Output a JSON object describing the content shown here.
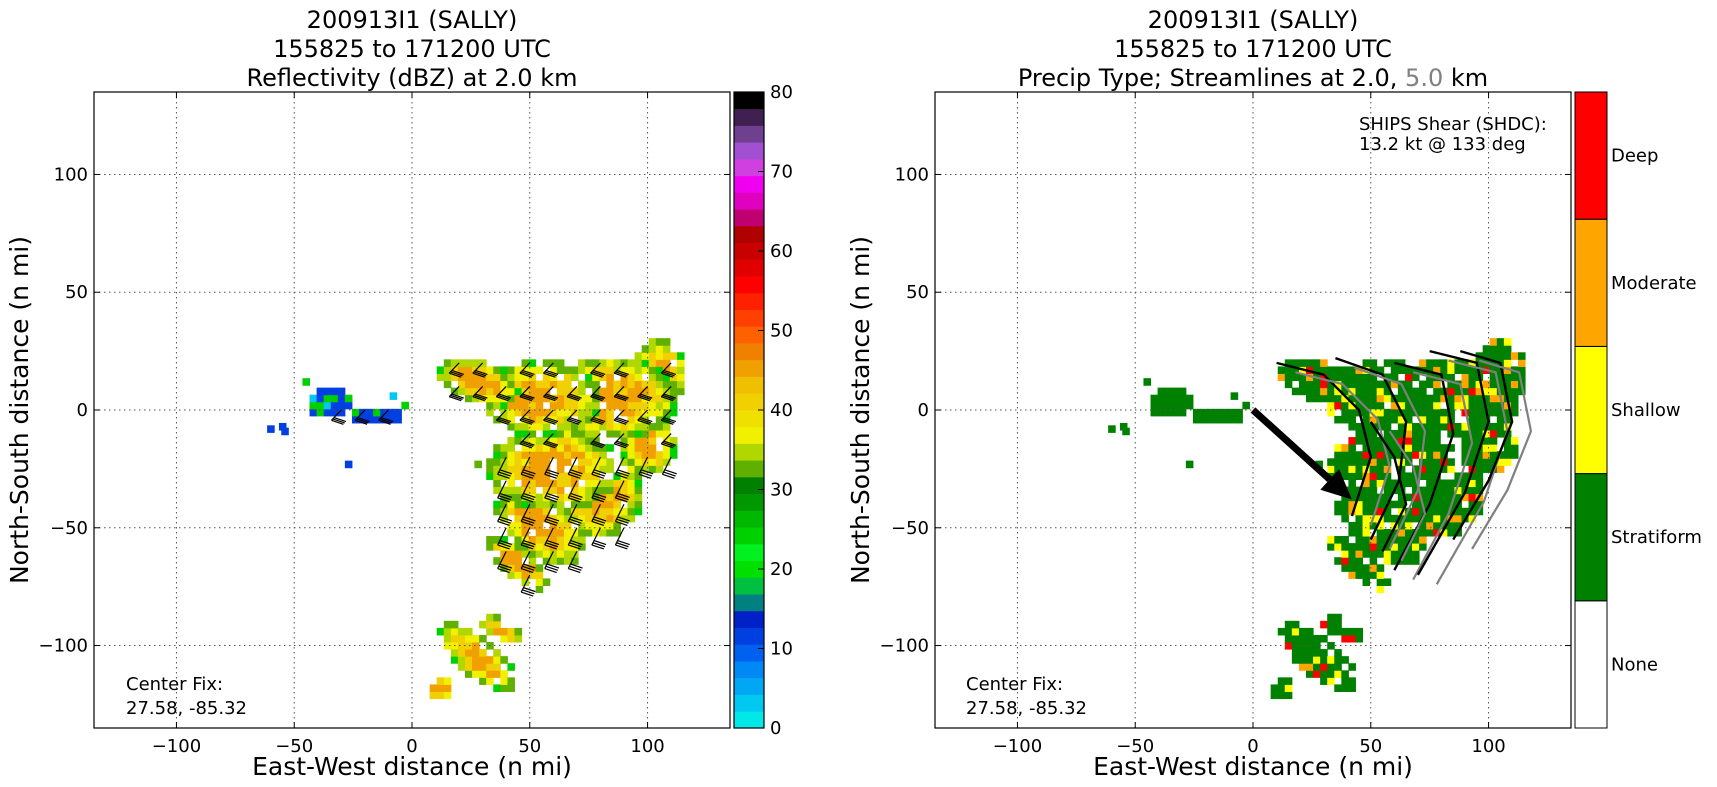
{
  "chart_data": [
    {
      "type": "heatmap",
      "title_lines": [
        "200913I1 (SALLY)",
        "155825 to 171200 UTC",
        "Reflectivity (dBZ) at 2.0 km"
      ],
      "xlabel": "East-West distance (n mi)",
      "ylabel": "North-South distance (n mi)",
      "xlim": [
        -135,
        135
      ],
      "ylim": [
        -135,
        135
      ],
      "xticks": [
        -100,
        -50,
        0,
        50,
        100
      ],
      "yticks": [
        -100,
        -50,
        0,
        50,
        100
      ],
      "xtick_labels": [
        "−100",
        "−50",
        "0",
        "50",
        "100"
      ],
      "ytick_labels": [
        "−100",
        "−50",
        "0",
        "50",
        "100"
      ],
      "grid": true,
      "annotation": [
        "Center Fix:",
        "27.58, -85.32"
      ],
      "colorbar": {
        "range": [
          0,
          80
        ],
        "tick_values": [
          0,
          10,
          20,
          30,
          40,
          50,
          60,
          70,
          80
        ],
        "tick_labels": [
          "0",
          "10",
          "20",
          "30",
          "40",
          "50",
          "60",
          "70",
          "80"
        ],
        "colors": [
          "#00e8e8",
          "#00c8f0",
          "#00a8f4",
          "#0088f4",
          "#0060f0",
          "#0040e0",
          "#0020c8",
          "#008080",
          "#00c040",
          "#00e000",
          "#00f020",
          "#00d000",
          "#00b800",
          "#009800",
          "#008000",
          "#60b000",
          "#b0d800",
          "#f0f000",
          "#f0e000",
          "#f0d000",
          "#f0c000",
          "#f0a000",
          "#f08000",
          "#ff6000",
          "#ff4000",
          "#ff2000",
          "#ff0000",
          "#e00000",
          "#c80000",
          "#b00000",
          "#c00070",
          "#e000c0",
          "#f000f0",
          "#d040e0",
          "#a050d0",
          "#704090",
          "#402050",
          "#000000"
        ]
      },
      "field_colors": [
        "#0040e0",
        "#00c8f0",
        "#00d000",
        "#60b000",
        "#b0d800",
        "#f0f000",
        "#f0d000",
        "#f0a000"
      ],
      "wind_barbs": true
    },
    {
      "type": "heatmap",
      "title_lines": [
        "200913I1 (SALLY)",
        "155825 to 171200 UTC",
        "Precip Type; Streamlines at 2.0,",
        "5.0",
        "km"
      ],
      "xlabel": "East-West distance (n mi)",
      "ylabel": "North-South distance (n mi)",
      "xlim": [
        -135,
        135
      ],
      "ylim": [
        -135,
        135
      ],
      "xticks": [
        -100,
        -50,
        0,
        50,
        100
      ],
      "yticks": [
        -100,
        -50,
        0,
        50,
        100
      ],
      "xtick_labels": [
        "−100",
        "−50",
        "0",
        "50",
        "100"
      ],
      "ytick_labels": [
        "−100",
        "−50",
        "0",
        "50",
        "100"
      ],
      "grid": true,
      "annotation": [
        "Center Fix:",
        "27.58, -85.32"
      ],
      "shear_text": [
        "SHIPS Shear (SHDC):",
        "13.2 kt @ 133 deg"
      ],
      "shear": {
        "speed_kt": 13.2,
        "direction_deg": 133,
        "arrow_start": [
          0,
          0
        ],
        "arrow_end": [
          42,
          -38
        ]
      },
      "categories": [
        {
          "name": "None",
          "color": "#ffffff"
        },
        {
          "name": "Stratiform",
          "color": "#008000"
        },
        {
          "name": "Shallow",
          "color": "#ffff00"
        },
        {
          "name": "Moderate",
          "color": "#ffa500"
        },
        {
          "name": "Deep",
          "color": "#ff0000"
        }
      ],
      "streamline_colors": {
        "low": "#000000",
        "high": "#808080"
      }
    }
  ]
}
